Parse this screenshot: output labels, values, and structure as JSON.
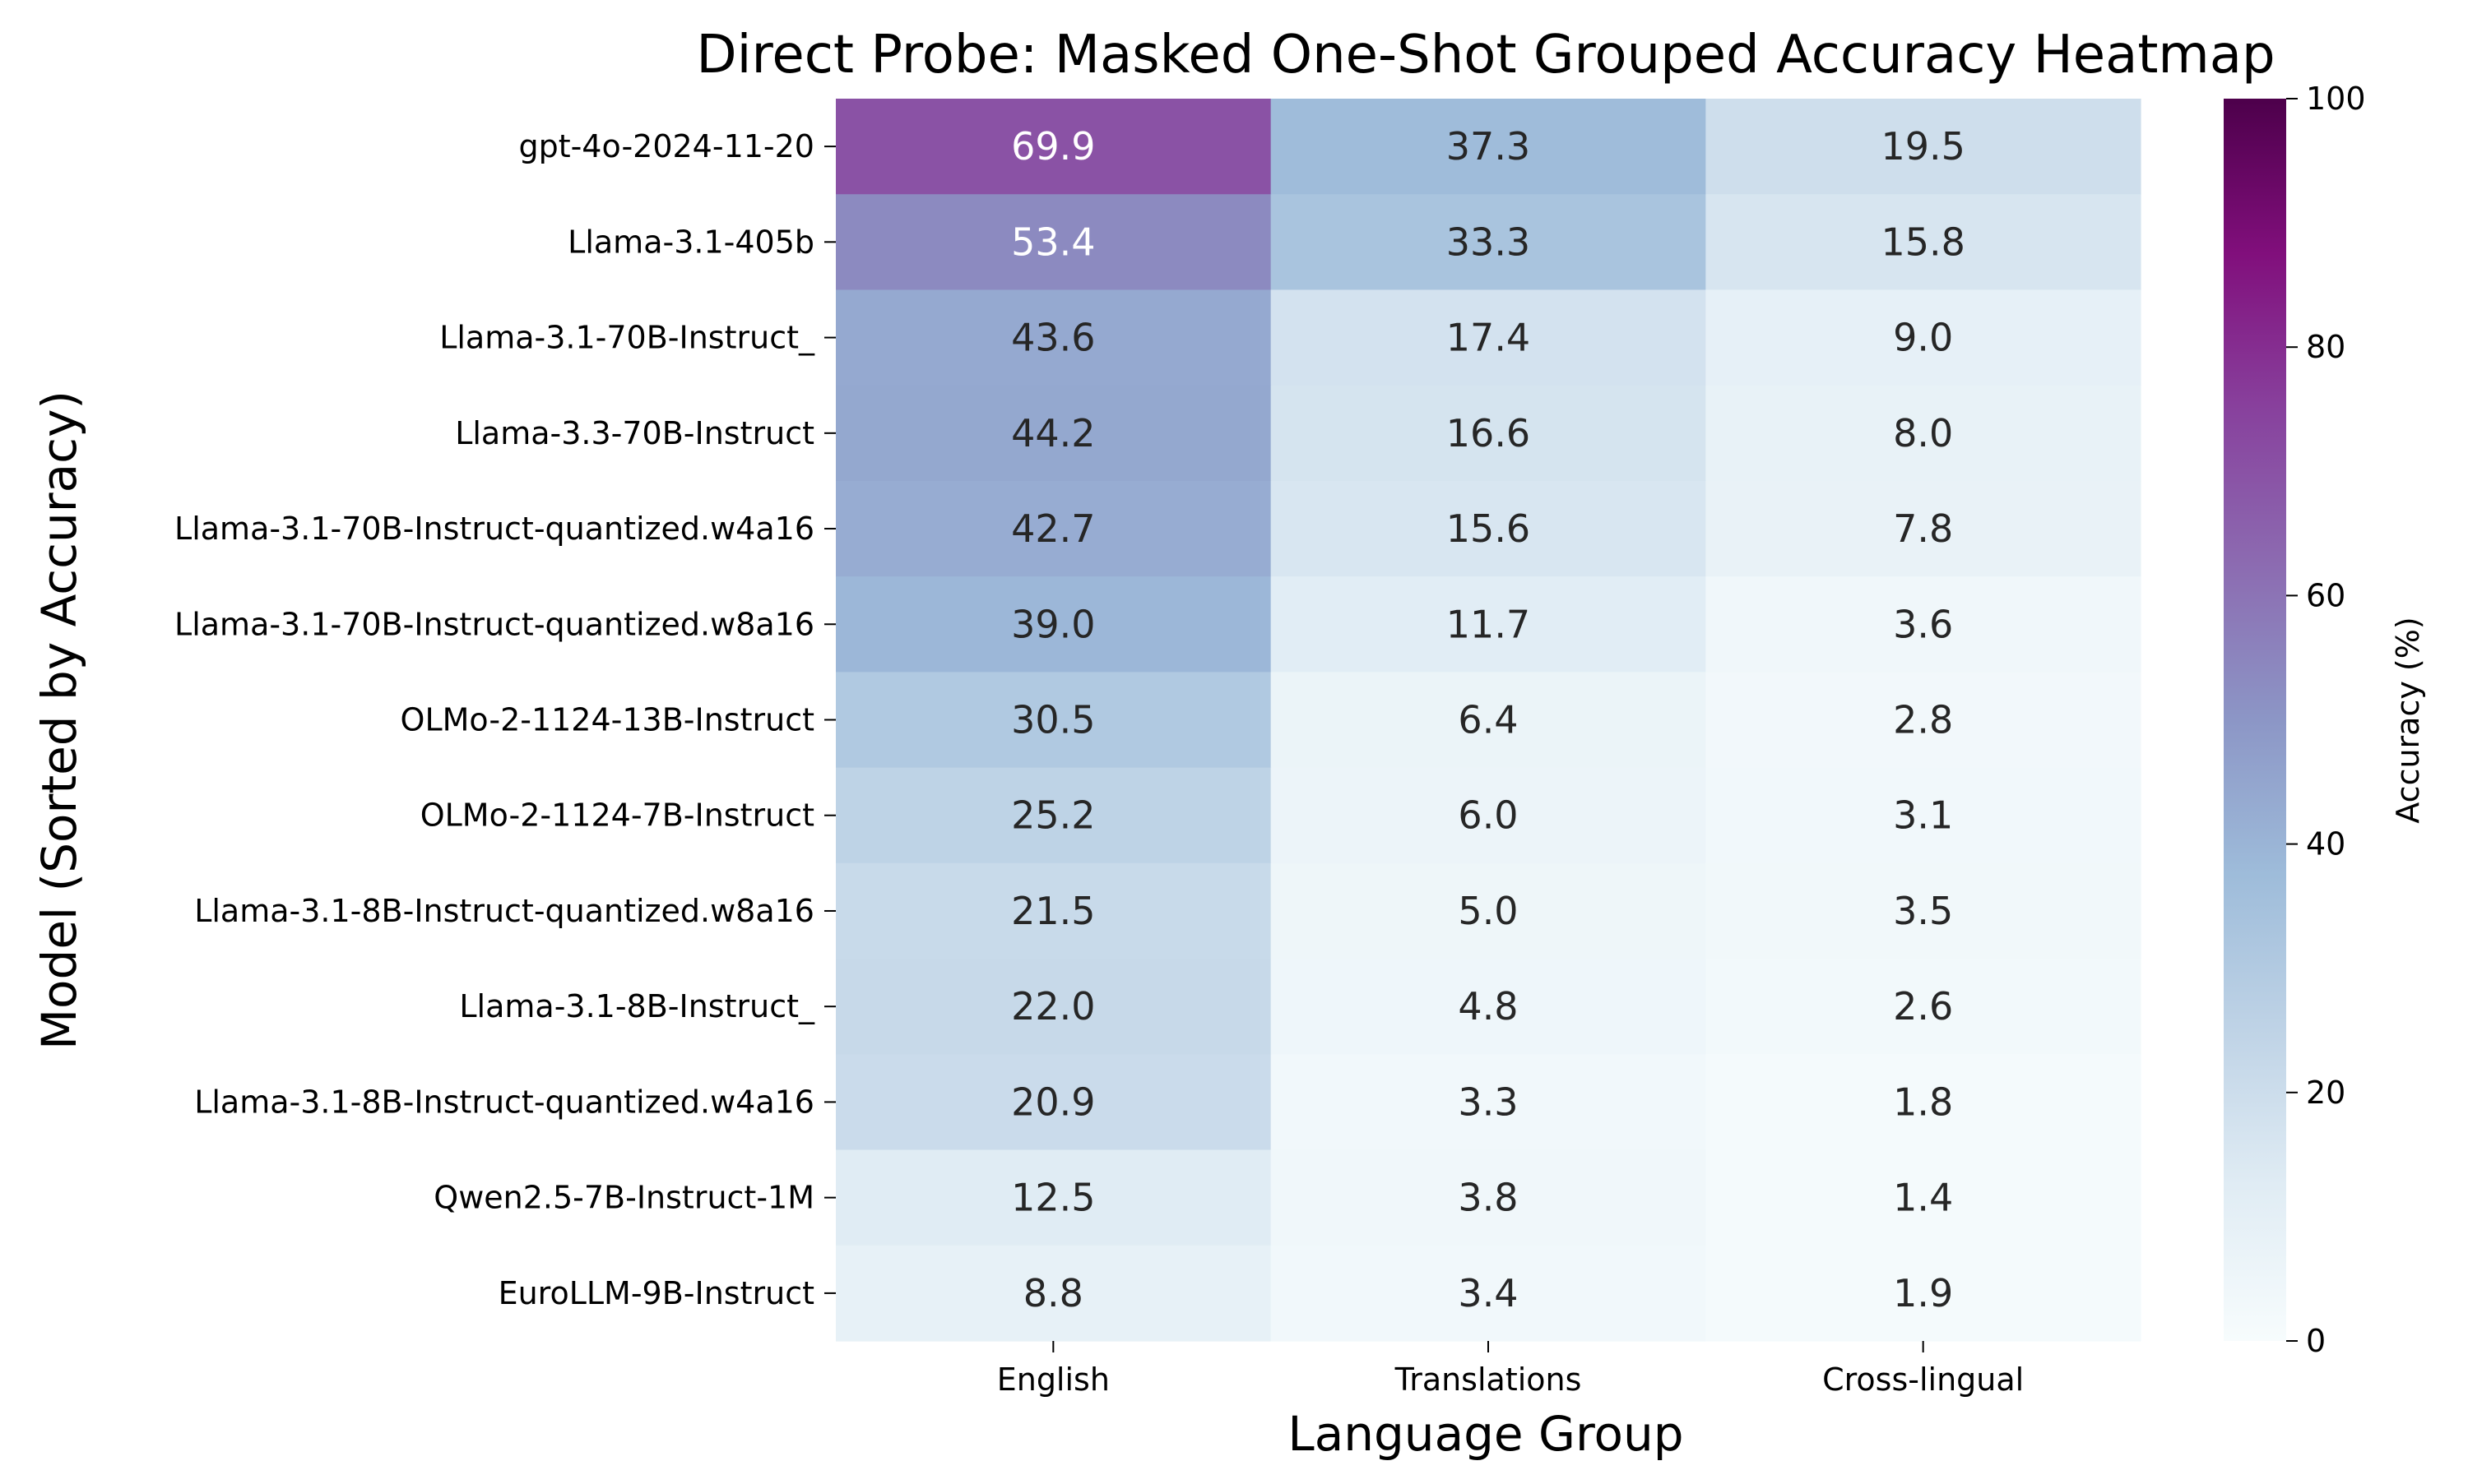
{
  "chart_data": {
    "type": "heatmap",
    "title": "Direct Probe: Masked One-Shot Grouped Accuracy Heatmap",
    "xlabel": "Language Group",
    "ylabel": "Model (Sorted by Accuracy)",
    "columns": [
      "English",
      "Translations",
      "Cross-lingual"
    ],
    "rows": [
      "gpt-4o-2024-11-20",
      "Llama-3.1-405b",
      "Llama-3.1-70B-Instruct_",
      "Llama-3.3-70B-Instruct",
      "Llama-3.1-70B-Instruct-quantized.w4a16",
      "Llama-3.1-70B-Instruct-quantized.w8a16",
      "OLMo-2-1124-13B-Instruct",
      "OLMo-2-1124-7B-Instruct",
      "Llama-3.1-8B-Instruct-quantized.w8a16",
      "Llama-3.1-8B-Instruct_",
      "Llama-3.1-8B-Instruct-quantized.w4a16",
      "Qwen2.5-7B-Instruct-1M",
      "EuroLLM-9B-Instruct"
    ],
    "values": [
      [
        "69.9",
        "37.3",
        "19.5"
      ],
      [
        "53.4",
        "33.3",
        "15.8"
      ],
      [
        "43.6",
        "17.4",
        "9.0"
      ],
      [
        "44.2",
        "16.6",
        "8.0"
      ],
      [
        "42.7",
        "15.6",
        "7.8"
      ],
      [
        "39.0",
        "11.7",
        "3.6"
      ],
      [
        "30.5",
        "6.4",
        "2.8"
      ],
      [
        "25.2",
        "6.0",
        "3.1"
      ],
      [
        "21.5",
        "5.0",
        "3.5"
      ],
      [
        "22.0",
        "4.8",
        "2.6"
      ],
      [
        "20.9",
        "3.3",
        "1.8"
      ],
      [
        "12.5",
        "3.8",
        "1.4"
      ],
      [
        "8.8",
        "3.4",
        "1.9"
      ]
    ],
    "colorbar": {
      "label": "Accuracy (%)",
      "min": 0,
      "max": 100,
      "ticks": [
        "0",
        "20",
        "40",
        "60",
        "80",
        "100"
      ]
    },
    "colormap": "BuPu",
    "colormap_stops": [
      "#f7fcfd",
      "#e0ecf4",
      "#bfd3e6",
      "#9ebcda",
      "#8c96c6",
      "#8c6bb1",
      "#88419d",
      "#810f7c",
      "#4d004b"
    ]
  }
}
